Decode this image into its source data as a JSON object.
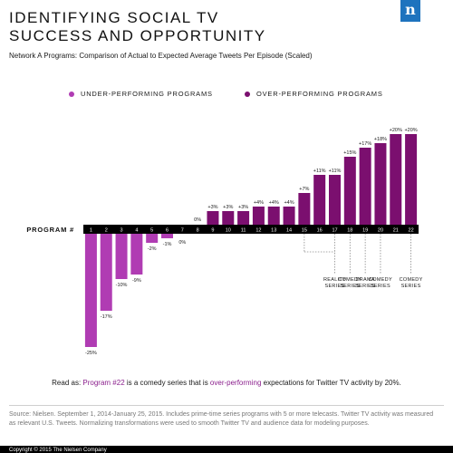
{
  "header": {
    "title_line1": "IDENTIFYING SOCIAL TV",
    "title_line2": "SUCCESS AND OPPORTUNITY",
    "logo_letter": "n",
    "subtitle": "Network A Programs: Comparison of Actual to Expected Average Tweets Per Episode (Scaled)"
  },
  "colors": {
    "under": "#b03cb3",
    "over": "#7b0f6f",
    "axis": "#000000",
    "logo": "#1e73be"
  },
  "chart_data": {
    "type": "bar",
    "axis_label": "PROGRAM #",
    "categories": [
      "1",
      "2",
      "3",
      "4",
      "5",
      "6",
      "7",
      "8",
      "9",
      "10",
      "11",
      "12",
      "13",
      "14",
      "15",
      "16",
      "17",
      "18",
      "19",
      "20",
      "21",
      "22"
    ],
    "values": [
      -25,
      -17,
      -10,
      -9,
      -2,
      -1,
      0,
      0,
      3,
      3,
      3,
      4,
      4,
      4,
      7,
      11,
      11,
      15,
      17,
      18,
      20,
      20
    ],
    "value_labels": [
      "-25%",
      "-17%",
      "-10%",
      "-9%",
      "-2%",
      "-1%",
      "0%",
      "0%",
      "+3%",
      "+3%",
      "+3%",
      "+4%",
      "+4%",
      "+4%",
      "+7%",
      "+11%",
      "+11%",
      "+15%",
      "+17%",
      "+18%",
      "+20%",
      "+20%"
    ],
    "legend": [
      {
        "name": "UNDER-PERFORMING PROGRAMS",
        "color": "#b03cb3"
      },
      {
        "name": "OVER-PERFORMING PROGRAMS",
        "color": "#7b0f6f"
      }
    ],
    "annotations": [
      {
        "program": "17",
        "label_line1": "REALITY",
        "label_line2": "SERIES"
      },
      {
        "program": "18",
        "label_line1": "COMEDY",
        "label_line2": "SERIES"
      },
      {
        "program": "19",
        "label_line1": "DRAMA",
        "label_line2": "SERIES"
      },
      {
        "program": "20",
        "label_line1": "COMEDY",
        "label_line2": "SERIES"
      },
      {
        "program": "22",
        "label_line1": "COMEDY",
        "label_line2": "SERIES"
      }
    ],
    "annotation_lead_from": "15"
  },
  "readas": {
    "prefix": "Read as: ",
    "program": "Program #22",
    "middle": " is a comedy series that is ",
    "perf": "over-performing",
    "suffix": " expectations for Twitter TV activity by 20%."
  },
  "footer": {
    "source": "Source: Nielsen. September 1, 2014-January 25, 2015. Includes prime-time series programs with 5 or more telecasts. Twitter TV activity was measured as relevant U.S. Tweets. Normalizing transformations were used to smooth Twitter TV and audience data for modeling purposes.",
    "copyright": "Copyright © 2015 The Nielsen Company"
  }
}
